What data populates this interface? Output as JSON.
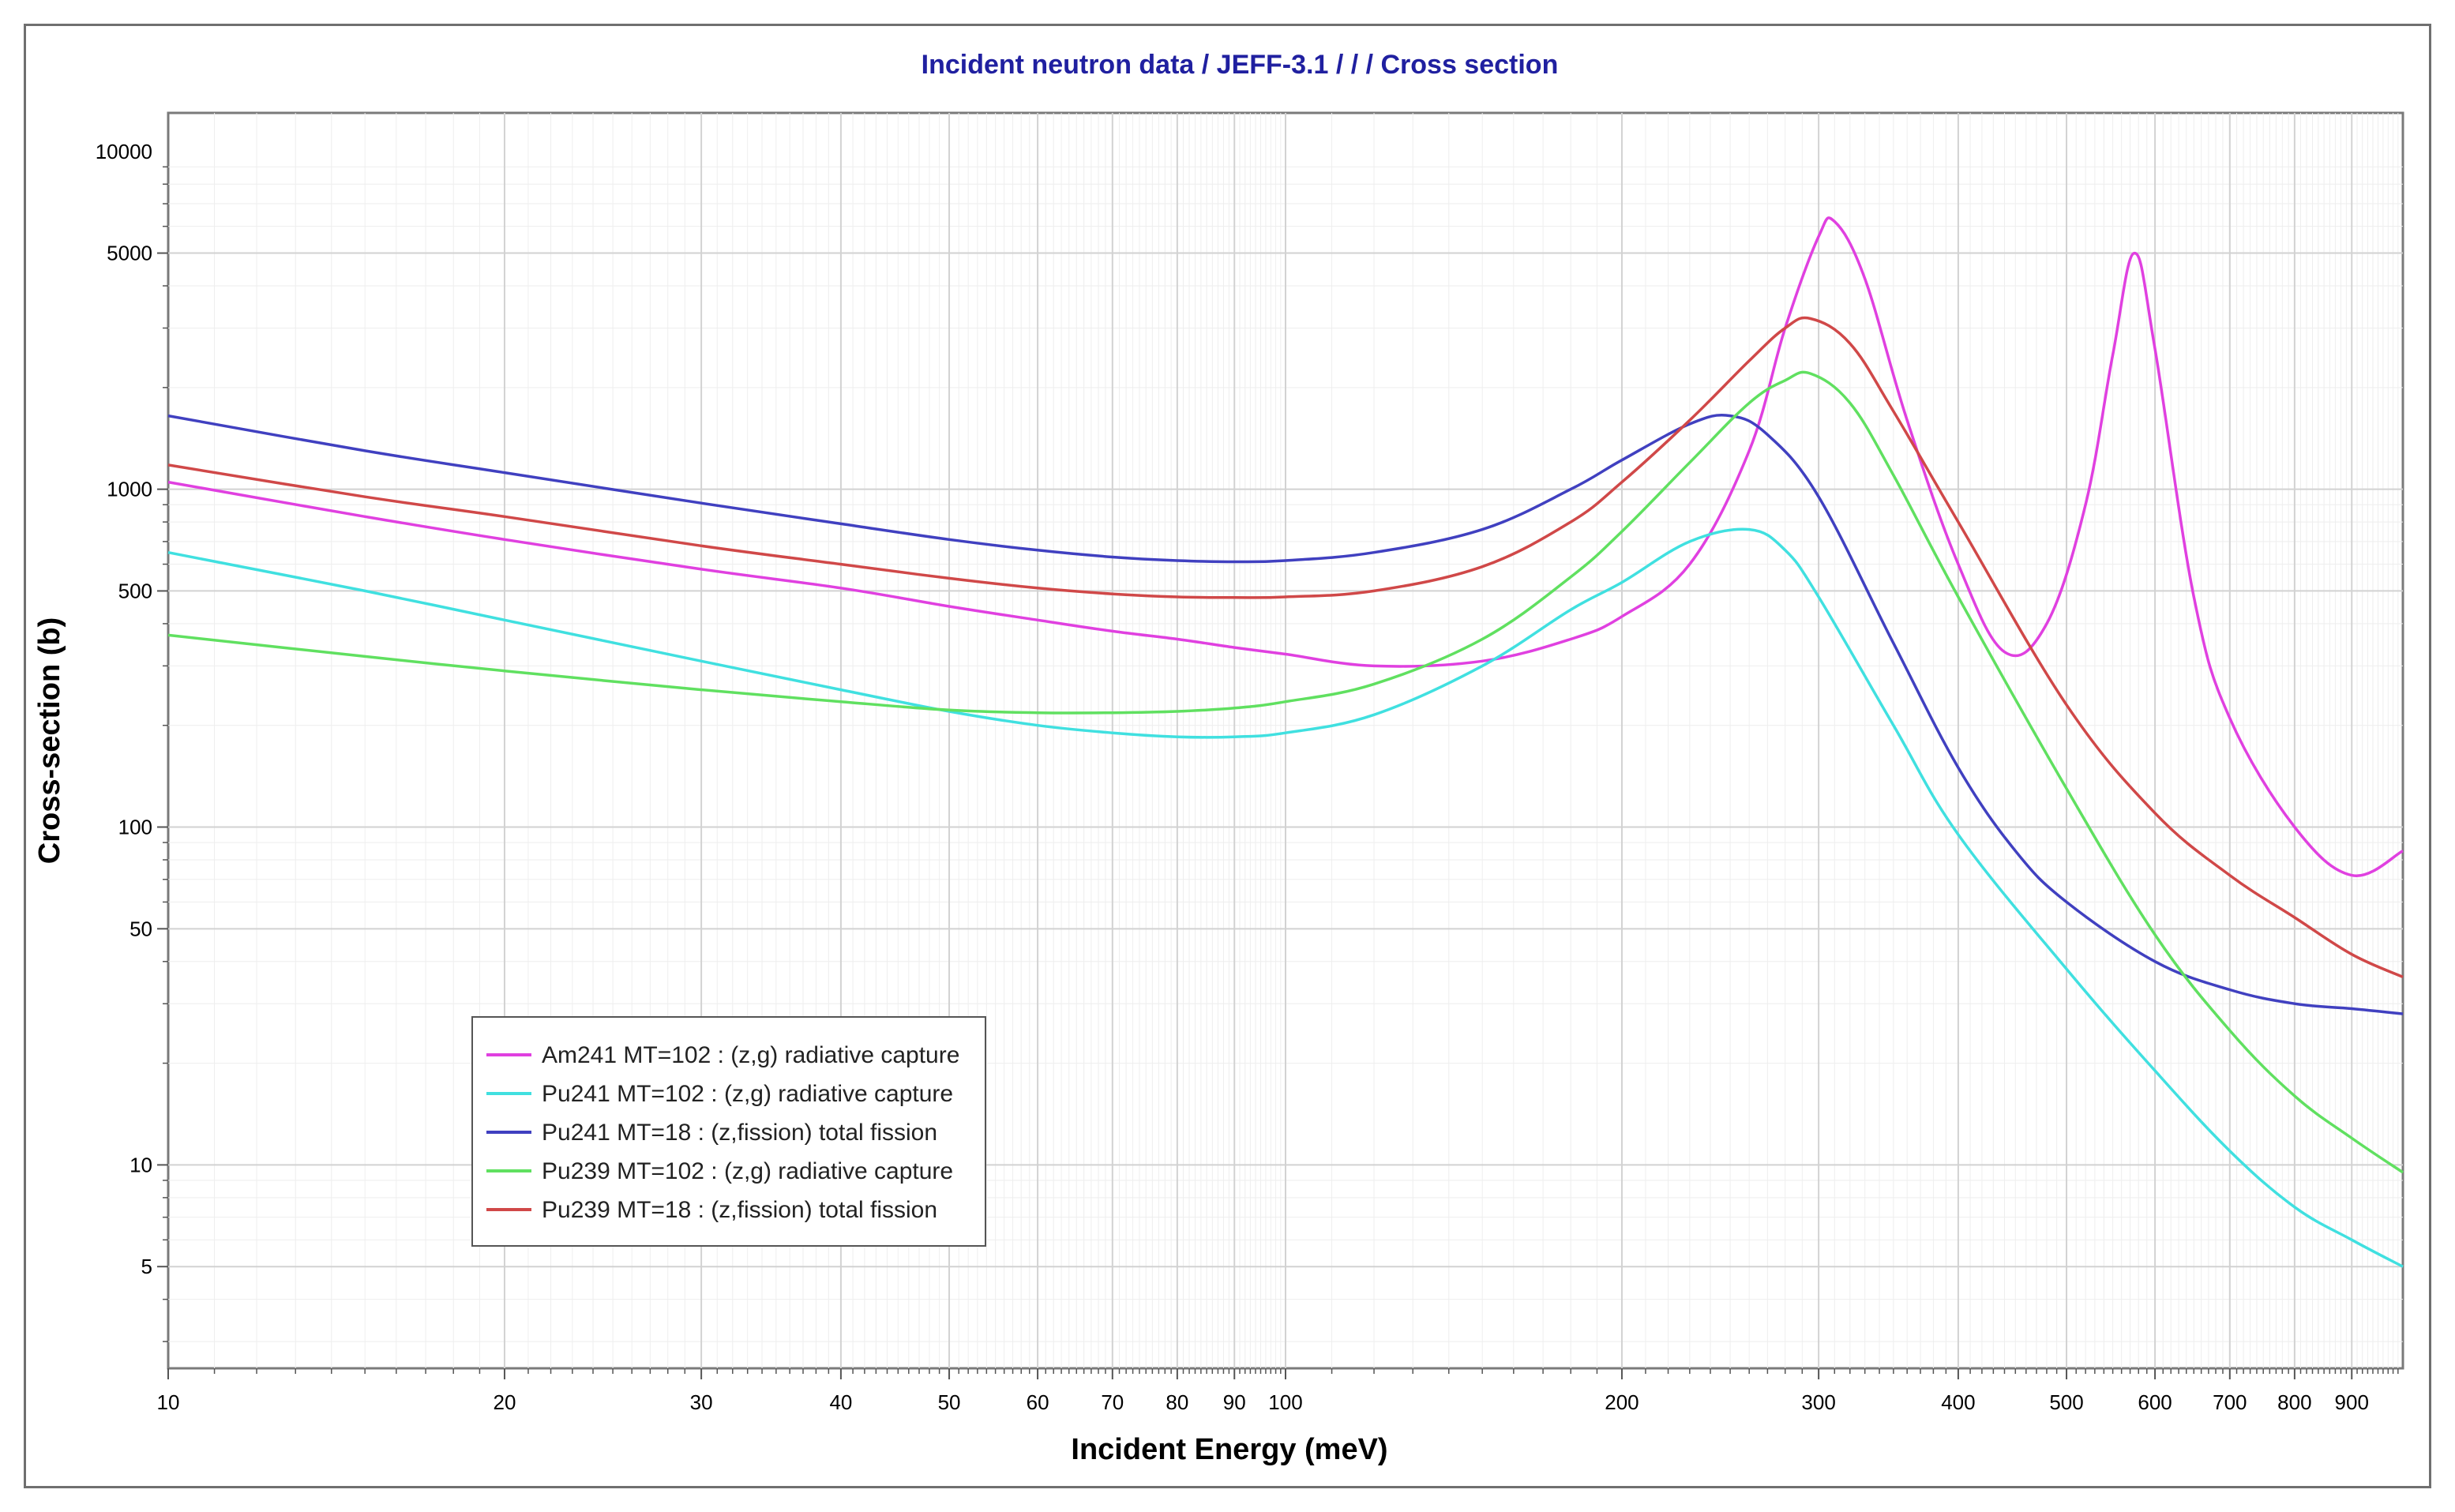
{
  "chart_data": {
    "type": "line",
    "title": "Incident neutron data / JEFF-3.1 / / / Cross section",
    "xlabel": "Incident Energy (meV)",
    "ylabel": "Cross-section (b)",
    "xscale": "log",
    "yscale": "log",
    "xlim": [
      10,
      1000
    ],
    "ylim": [
      2.5,
      13000
    ],
    "grid": true,
    "legend_position": "lower-left",
    "xticks": [
      {
        "v": 10,
        "label": "10"
      },
      {
        "v": 20,
        "label": "20"
      },
      {
        "v": 30,
        "label": "30"
      },
      {
        "v": 40,
        "label": "40"
      },
      {
        "v": 50,
        "label": "50"
      },
      {
        "v": 60,
        "label": "60"
      },
      {
        "v": 70,
        "label": "70"
      },
      {
        "v": 80,
        "label": "80"
      },
      {
        "v": 90,
        "label": "90"
      },
      {
        "v": 100,
        "label": "100"
      },
      {
        "v": 200,
        "label": "200"
      },
      {
        "v": 300,
        "label": "300"
      },
      {
        "v": 400,
        "label": "400"
      },
      {
        "v": 500,
        "label": "500"
      },
      {
        "v": 600,
        "label": "600"
      },
      {
        "v": 700,
        "label": "700"
      },
      {
        "v": 800,
        "label": "800"
      },
      {
        "v": 900,
        "label": "900"
      }
    ],
    "yticks": [
      {
        "v": 5,
        "label": "5"
      },
      {
        "v": 10,
        "label": "10"
      },
      {
        "v": 50,
        "label": "50"
      },
      {
        "v": 100,
        "label": "100"
      },
      {
        "v": 500,
        "label": "500"
      },
      {
        "v": 1000,
        "label": "1000"
      },
      {
        "v": 5000,
        "label": "5000"
      },
      {
        "v": 10000,
        "label": "10000"
      }
    ],
    "series": [
      {
        "name": "Am241 MT=102 : (z,g) radiative capture",
        "color": "#e040e0",
        "x": [
          10,
          15,
          20,
          30,
          40,
          50,
          60,
          70,
          80,
          90,
          100,
          120,
          150,
          180,
          200,
          230,
          260,
          280,
          300,
          310,
          330,
          360,
          400,
          440,
          480,
          520,
          550,
          575,
          600,
          650,
          700,
          800,
          900,
          1000
        ],
        "y": [
          1050,
          830,
          710,
          580,
          510,
          450,
          410,
          380,
          360,
          340,
          325,
          300,
          310,
          360,
          420,
          600,
          1300,
          3000,
          5600,
          6200,
          4200,
          1600,
          600,
          330,
          400,
          900,
          2500,
          5000,
          2600,
          480,
          210,
          100,
          72,
          85
        ]
      },
      {
        "name": "Pu241 MT=102 : (z,g) radiative capture",
        "color": "#40e0e0",
        "x": [
          10,
          15,
          20,
          30,
          40,
          50,
          60,
          70,
          80,
          90,
          100,
          120,
          150,
          180,
          200,
          230,
          260,
          280,
          300,
          350,
          400,
          500,
          600,
          700,
          800,
          900,
          1000
        ],
        "y": [
          650,
          500,
          410,
          310,
          255,
          220,
          200,
          190,
          185,
          185,
          190,
          215,
          300,
          440,
          530,
          700,
          760,
          660,
          480,
          200,
          95,
          38,
          19,
          11,
          7.5,
          6,
          5
        ]
      },
      {
        "name": "Pu241 MT=18 : (z,fission) total fission",
        "color": "#4040c0",
        "x": [
          10,
          15,
          20,
          30,
          40,
          50,
          60,
          70,
          80,
          90,
          100,
          120,
          150,
          180,
          200,
          230,
          250,
          270,
          300,
          350,
          400,
          450,
          500,
          600,
          700,
          800,
          900,
          1000
        ],
        "y": [
          1650,
          1300,
          1120,
          910,
          790,
          710,
          660,
          630,
          615,
          610,
          615,
          650,
          760,
          1000,
          1220,
          1560,
          1650,
          1450,
          950,
          350,
          150,
          85,
          60,
          40,
          33,
          30,
          29,
          28
        ]
      },
      {
        "name": "Pu239 MT=102 : (z,g) radiative capture",
        "color": "#60e060",
        "x": [
          10,
          15,
          20,
          30,
          40,
          50,
          60,
          70,
          80,
          90,
          100,
          120,
          150,
          180,
          200,
          230,
          260,
          280,
          295,
          320,
          350,
          400,
          500,
          600,
          700,
          800,
          900,
          1000
        ],
        "y": [
          370,
          320,
          290,
          255,
          235,
          222,
          218,
          218,
          220,
          225,
          235,
          265,
          360,
          550,
          750,
          1200,
          1800,
          2100,
          2200,
          1800,
          1100,
          480,
          130,
          48,
          25,
          16,
          12,
          9.5
        ]
      },
      {
        "name": "Pu239 MT=18 : (z,fission) total fission",
        "color": "#d04848",
        "x": [
          10,
          15,
          20,
          30,
          40,
          50,
          60,
          70,
          80,
          90,
          100,
          120,
          150,
          180,
          200,
          230,
          260,
          280,
          295,
          320,
          350,
          400,
          500,
          600,
          700,
          800,
          900,
          1000
        ],
        "y": [
          1180,
          950,
          830,
          680,
          600,
          545,
          510,
          490,
          480,
          478,
          480,
          500,
          590,
          800,
          1050,
          1600,
          2400,
          3000,
          3200,
          2700,
          1700,
          800,
          230,
          110,
          72,
          54,
          42,
          36
        ]
      }
    ]
  }
}
